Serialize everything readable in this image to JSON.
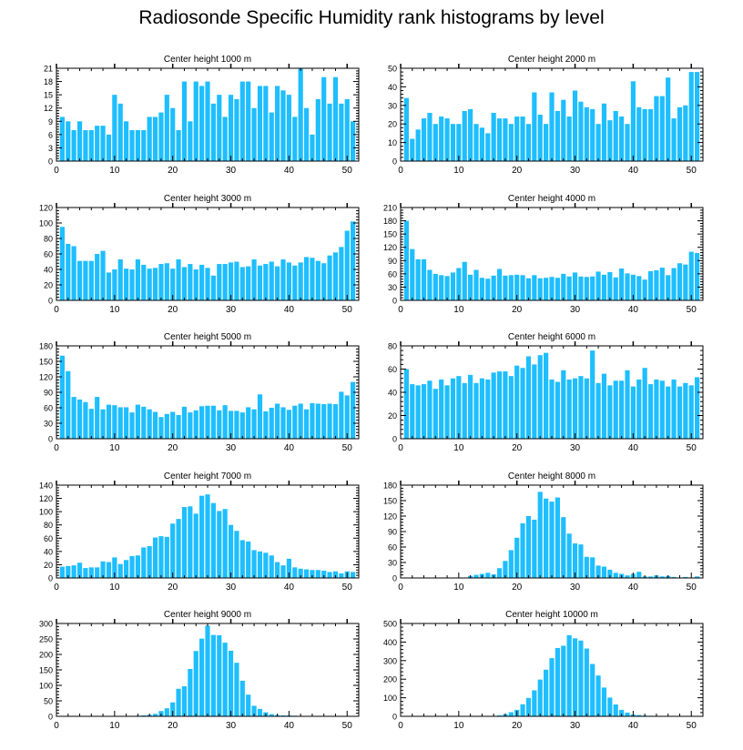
{
  "figure_title": "Radiosonde Specific Humidity rank histograms by level",
  "colors": {
    "bar": "#1ebeff",
    "bar_edge": "#ffffff",
    "axis": "#000000"
  },
  "chart_data": [
    {
      "type": "bar",
      "title": "Center height 1000 m",
      "xlim": [
        0,
        52
      ],
      "xticks": [
        0,
        10,
        20,
        30,
        40,
        50
      ],
      "ylim": [
        0,
        21
      ],
      "yticks": [
        0,
        3,
        6,
        9,
        12,
        15,
        18,
        21
      ],
      "x": [
        1,
        2,
        3,
        4,
        5,
        6,
        7,
        8,
        9,
        10,
        11,
        12,
        13,
        14,
        15,
        16,
        17,
        18,
        19,
        20,
        21,
        22,
        23,
        24,
        25,
        26,
        27,
        28,
        29,
        30,
        31,
        32,
        33,
        34,
        35,
        36,
        37,
        38,
        39,
        40,
        41,
        42,
        43,
        44,
        45,
        46,
        47,
        48,
        49,
        50,
        51
      ],
      "values": [
        10,
        9,
        7,
        9,
        7,
        7,
        8,
        8,
        6,
        15,
        13,
        9,
        7,
        7,
        7,
        10,
        10,
        11,
        15,
        12,
        7,
        18,
        9,
        18,
        17,
        18,
        13,
        15,
        10,
        15,
        14,
        18,
        18,
        12,
        17,
        17,
        11,
        17,
        16,
        15,
        10,
        21,
        12,
        6,
        14,
        19,
        13,
        19,
        13,
        14,
        9
      ]
    },
    {
      "type": "bar",
      "title": "Center height 2000 m",
      "xlim": [
        0,
        52
      ],
      "xticks": [
        0,
        10,
        20,
        30,
        40,
        50
      ],
      "ylim": [
        0,
        50
      ],
      "yticks": [
        0,
        10,
        20,
        30,
        40,
        50
      ],
      "x": [
        1,
        2,
        3,
        4,
        5,
        6,
        7,
        8,
        9,
        10,
        11,
        12,
        13,
        14,
        15,
        16,
        17,
        18,
        19,
        20,
        21,
        22,
        23,
        24,
        25,
        26,
        27,
        28,
        29,
        30,
        31,
        32,
        33,
        34,
        35,
        36,
        37,
        38,
        39,
        40,
        41,
        42,
        43,
        44,
        45,
        46,
        47,
        48,
        49,
        50,
        51
      ],
      "values": [
        34,
        12,
        17,
        23,
        26,
        20,
        24,
        23,
        20,
        20,
        27,
        28,
        20,
        18,
        15,
        26,
        23,
        23,
        20,
        24,
        24,
        20,
        37,
        25,
        20,
        37,
        27,
        33,
        24,
        38,
        32,
        29,
        28,
        20,
        31,
        22,
        27,
        24,
        20,
        43,
        29,
        28,
        28,
        35,
        35,
        45,
        23,
        29,
        30,
        48,
        48
      ]
    },
    {
      "type": "bar",
      "title": "Center height 3000 m",
      "xlim": [
        0,
        52
      ],
      "xticks": [
        0,
        10,
        20,
        30,
        40,
        50
      ],
      "ylim": [
        0,
        120
      ],
      "yticks": [
        0,
        20,
        40,
        60,
        80,
        100,
        120
      ],
      "x": [
        1,
        2,
        3,
        4,
        5,
        6,
        7,
        8,
        9,
        10,
        11,
        12,
        13,
        14,
        15,
        16,
        17,
        18,
        19,
        20,
        21,
        22,
        23,
        24,
        25,
        26,
        27,
        28,
        29,
        30,
        31,
        32,
        33,
        34,
        35,
        36,
        37,
        38,
        39,
        40,
        41,
        42,
        43,
        44,
        45,
        46,
        47,
        48,
        49,
        50,
        51
      ],
      "values": [
        95,
        73,
        70,
        51,
        51,
        51,
        60,
        64,
        36,
        40,
        53,
        41,
        40,
        53,
        46,
        41,
        42,
        47,
        48,
        41,
        53,
        43,
        47,
        40,
        46,
        42,
        32,
        47,
        47,
        49,
        50,
        43,
        44,
        53,
        45,
        47,
        50,
        44,
        53,
        49,
        45,
        49,
        56,
        55,
        51,
        48,
        58,
        62,
        69,
        90,
        102
      ]
    },
    {
      "type": "bar",
      "title": "Center height 4000 m",
      "xlim": [
        0,
        52
      ],
      "xticks": [
        0,
        10,
        20,
        30,
        40,
        50
      ],
      "ylim": [
        0,
        210
      ],
      "yticks": [
        0,
        30,
        60,
        90,
        120,
        150,
        180,
        210
      ],
      "x": [
        1,
        2,
        3,
        4,
        5,
        6,
        7,
        8,
        9,
        10,
        11,
        12,
        13,
        14,
        15,
        16,
        17,
        18,
        19,
        20,
        21,
        22,
        23,
        24,
        25,
        26,
        27,
        28,
        29,
        30,
        31,
        32,
        33,
        34,
        35,
        36,
        37,
        38,
        39,
        40,
        41,
        42,
        43,
        44,
        45,
        46,
        47,
        48,
        49,
        50,
        51
      ],
      "values": [
        180,
        116,
        93,
        93,
        69,
        60,
        57,
        55,
        63,
        73,
        87,
        58,
        69,
        51,
        49,
        56,
        71,
        56,
        57,
        58,
        57,
        50,
        57,
        50,
        51,
        53,
        51,
        60,
        54,
        63,
        54,
        53,
        54,
        65,
        58,
        64,
        52,
        72,
        61,
        58,
        55,
        47,
        66,
        68,
        74,
        57,
        73,
        84,
        81,
        110,
        107
      ]
    },
    {
      "type": "bar",
      "title": "Center height 5000 m",
      "xlim": [
        0,
        52
      ],
      "xticks": [
        0,
        10,
        20,
        30,
        40,
        50
      ],
      "ylim": [
        0,
        180
      ],
      "yticks": [
        0,
        30,
        60,
        90,
        120,
        150,
        180
      ],
      "x": [
        1,
        2,
        3,
        4,
        5,
        6,
        7,
        8,
        9,
        10,
        11,
        12,
        13,
        14,
        15,
        16,
        17,
        18,
        19,
        20,
        21,
        22,
        23,
        24,
        25,
        26,
        27,
        28,
        29,
        30,
        31,
        32,
        33,
        34,
        35,
        36,
        37,
        38,
        39,
        40,
        41,
        42,
        43,
        44,
        45,
        46,
        47,
        48,
        49,
        50,
        51
      ],
      "values": [
        161,
        131,
        81,
        76,
        71,
        58,
        81,
        57,
        66,
        65,
        61,
        61,
        51,
        66,
        62,
        57,
        52,
        42,
        48,
        52,
        46,
        62,
        51,
        55,
        63,
        64,
        64,
        55,
        65,
        54,
        54,
        51,
        61,
        57,
        86,
        53,
        60,
        68,
        61,
        56,
        64,
        68,
        57,
        69,
        68,
        67,
        68,
        67,
        91,
        84,
        110
      ]
    },
    {
      "type": "bar",
      "title": "Center height 6000 m",
      "xlim": [
        0,
        52
      ],
      "xticks": [
        0,
        10,
        20,
        30,
        40,
        50
      ],
      "ylim": [
        0,
        80
      ],
      "yticks": [
        0,
        20,
        40,
        60,
        80
      ],
      "x": [
        1,
        2,
        3,
        4,
        5,
        6,
        7,
        8,
        9,
        10,
        11,
        12,
        13,
        14,
        15,
        16,
        17,
        18,
        19,
        20,
        21,
        22,
        23,
        24,
        25,
        26,
        27,
        28,
        29,
        30,
        31,
        32,
        33,
        34,
        35,
        36,
        37,
        38,
        39,
        40,
        41,
        42,
        43,
        44,
        45,
        46,
        47,
        48,
        49,
        50,
        51
      ],
      "values": [
        60,
        47,
        46,
        47,
        50,
        43,
        51,
        46,
        52,
        54,
        48,
        55,
        48,
        52,
        51,
        57,
        58,
        58,
        54,
        63,
        61,
        71,
        64,
        72,
        74,
        51,
        49,
        59,
        51,
        52,
        54,
        52,
        76,
        48,
        56,
        46,
        50,
        50,
        59,
        45,
        51,
        61,
        47,
        51,
        50,
        45,
        51,
        45,
        48,
        46,
        53
      ]
    },
    {
      "type": "bar",
      "title": "Center height 7000 m",
      "xlim": [
        0,
        52
      ],
      "xticks": [
        0,
        10,
        20,
        30,
        40,
        50
      ],
      "ylim": [
        0,
        140
      ],
      "yticks": [
        0,
        20,
        40,
        60,
        80,
        100,
        120,
        140
      ],
      "x": [
        1,
        2,
        3,
        4,
        5,
        6,
        7,
        8,
        9,
        10,
        11,
        12,
        13,
        14,
        15,
        16,
        17,
        18,
        19,
        20,
        21,
        22,
        23,
        24,
        25,
        26,
        27,
        28,
        29,
        30,
        31,
        32,
        33,
        34,
        35,
        36,
        37,
        38,
        39,
        40,
        41,
        42,
        43,
        44,
        45,
        46,
        47,
        48,
        49,
        50,
        51
      ],
      "values": [
        17,
        18,
        19,
        23,
        15,
        16,
        16,
        25,
        24,
        31,
        21,
        27,
        33,
        34,
        46,
        48,
        61,
        63,
        62,
        82,
        89,
        107,
        108,
        97,
        124,
        126,
        113,
        101,
        104,
        80,
        71,
        57,
        55,
        42,
        40,
        38,
        34,
        24,
        19,
        29,
        16,
        14,
        13,
        12,
        12,
        11,
        9,
        10,
        7,
        10,
        9
      ]
    },
    {
      "type": "bar",
      "title": "Center height 8000 m",
      "xlim": [
        0,
        52
      ],
      "xticks": [
        0,
        10,
        20,
        30,
        40,
        50
      ],
      "ylim": [
        0,
        180
      ],
      "yticks": [
        0,
        30,
        60,
        90,
        120,
        150,
        180
      ],
      "x": [
        1,
        2,
        3,
        4,
        5,
        6,
        7,
        8,
        9,
        10,
        11,
        12,
        13,
        14,
        15,
        16,
        17,
        18,
        19,
        20,
        21,
        22,
        23,
        24,
        25,
        26,
        27,
        28,
        29,
        30,
        31,
        32,
        33,
        34,
        35,
        36,
        37,
        38,
        39,
        40,
        41,
        42,
        43,
        44,
        45,
        46,
        47,
        48,
        49,
        50,
        51
      ],
      "values": [
        0,
        0,
        0,
        0,
        0,
        0,
        0,
        0,
        0,
        0,
        0,
        4,
        6,
        8,
        10,
        7,
        19,
        33,
        54,
        78,
        106,
        120,
        113,
        167,
        154,
        148,
        156,
        118,
        86,
        67,
        65,
        41,
        40,
        24,
        22,
        16,
        10,
        8,
        5,
        8,
        12,
        3,
        3,
        5,
        3,
        4,
        2,
        0,
        2,
        0,
        3
      ]
    },
    {
      "type": "bar",
      "title": "Center height 9000 m",
      "xlim": [
        0,
        52
      ],
      "xticks": [
        0,
        10,
        20,
        30,
        40,
        50
      ],
      "ylim": [
        0,
        300
      ],
      "yticks": [
        0,
        50,
        100,
        150,
        200,
        250,
        300
      ],
      "x": [
        1,
        2,
        3,
        4,
        5,
        6,
        7,
        8,
        9,
        10,
        11,
        12,
        13,
        14,
        15,
        16,
        17,
        18,
        19,
        20,
        21,
        22,
        23,
        24,
        25,
        26,
        27,
        28,
        29,
        30,
        31,
        32,
        33,
        34,
        35,
        36,
        37,
        38,
        39,
        40,
        41,
        42,
        43,
        44,
        45,
        46,
        47,
        48,
        49,
        50,
        51
      ],
      "values": [
        0,
        0,
        0,
        0,
        0,
        0,
        0,
        0,
        0,
        0,
        0,
        0,
        0,
        2,
        3,
        5,
        8,
        17,
        26,
        45,
        89,
        97,
        153,
        211,
        251,
        293,
        263,
        262,
        238,
        212,
        173,
        115,
        70,
        34,
        24,
        13,
        7,
        4,
        3,
        3,
        2,
        1,
        1,
        0,
        0,
        0,
        0,
        0,
        0,
        0,
        0
      ]
    },
    {
      "type": "bar",
      "title": "Center height 10000 m",
      "xlim": [
        0,
        52
      ],
      "xticks": [
        0,
        10,
        20,
        30,
        40,
        50
      ],
      "ylim": [
        0,
        500
      ],
      "yticks": [
        0,
        100,
        200,
        300,
        400,
        500
      ],
      "x": [
        1,
        2,
        3,
        4,
        5,
        6,
        7,
        8,
        9,
        10,
        11,
        12,
        13,
        14,
        15,
        16,
        17,
        18,
        19,
        20,
        21,
        22,
        23,
        24,
        25,
        26,
        27,
        28,
        29,
        30,
        31,
        32,
        33,
        34,
        35,
        36,
        37,
        38,
        39,
        40,
        41,
        42,
        43,
        44,
        45,
        46,
        47,
        48,
        49,
        50,
        51
      ],
      "values": [
        0,
        0,
        0,
        0,
        0,
        0,
        0,
        0,
        0,
        0,
        0,
        0,
        0,
        0,
        0,
        0,
        5,
        12,
        22,
        35,
        65,
        99,
        140,
        198,
        251,
        313,
        368,
        380,
        437,
        420,
        408,
        365,
        282,
        220,
        155,
        101,
        64,
        35,
        20,
        10,
        7,
        4,
        3,
        2,
        2,
        1,
        0,
        0,
        0,
        0,
        0
      ]
    }
  ]
}
